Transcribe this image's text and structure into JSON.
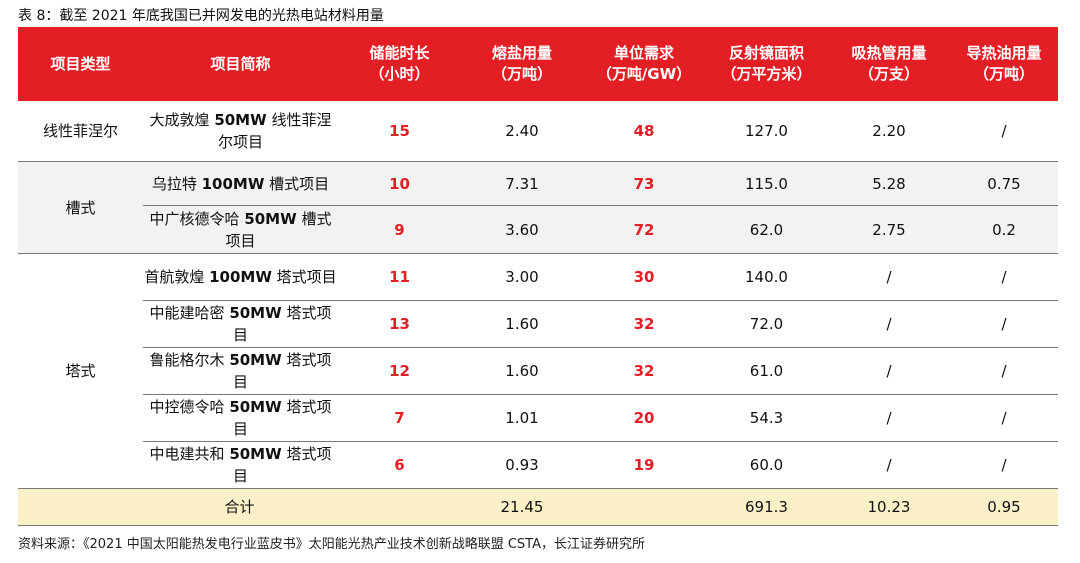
{
  "caption": "表 8：截至 2021 年底我国已并网发电的光热电站材料用量",
  "headers": [
    {
      "l1": "项目类型",
      "l2": ""
    },
    {
      "l1": "项目简称",
      "l2": ""
    },
    {
      "l1": "储能时长",
      "l2": "（小时）"
    },
    {
      "l1": "熔盐用量",
      "l2": "（万吨）"
    },
    {
      "l1": "单位需求",
      "l2": "（万吨/GW）"
    },
    {
      "l1": "反射镜面积",
      "l2": "（万平方米）"
    },
    {
      "l1": "吸热管用量",
      "l2": "（万支）"
    },
    {
      "l1": "导热油用量",
      "l2": "（万吨）"
    }
  ],
  "types": {
    "line": "线性菲涅尔",
    "trough": "槽式",
    "tower": "塔式"
  },
  "rows": [
    {
      "pre": "大成敦煌 ",
      "bold": "50MW",
      "post": " 线性菲涅尔项目",
      "hours": "15",
      "salt": "2.40",
      "unit": "48",
      "mirror": "127.0",
      "tube": "2.20",
      "oil": "/"
    },
    {
      "pre": "乌拉特 ",
      "bold": "100MW",
      "post": " 槽式项目",
      "hours": "10",
      "salt": "7.31",
      "unit": "73",
      "mirror": "115.0",
      "tube": "5.28",
      "oil": "0.75"
    },
    {
      "pre": "中广核德令哈 ",
      "bold": "50MW",
      "post": " 槽式项目",
      "hours": "9",
      "salt": "3.60",
      "unit": "72",
      "mirror": "62.0",
      "tube": "2.75",
      "oil": "0.2"
    },
    {
      "pre": "首航敦煌 ",
      "bold": "100MW",
      "post": " 塔式项目",
      "hours": "11",
      "salt": "3.00",
      "unit": "30",
      "mirror": "140.0",
      "tube": "/",
      "oil": "/"
    },
    {
      "pre": "中能建哈密 ",
      "bold": "50MW",
      "post": " 塔式项目",
      "hours": "13",
      "salt": "1.60",
      "unit": "32",
      "mirror": "72.0",
      "tube": "/",
      "oil": "/"
    },
    {
      "pre": "鲁能格尔木 ",
      "bold": "50MW",
      "post": " 塔式项目",
      "hours": "12",
      "salt": "1.60",
      "unit": "32",
      "mirror": "61.0",
      "tube": "/",
      "oil": "/"
    },
    {
      "pre": "中控德令哈 ",
      "bold": "50MW",
      "post": " 塔式项目",
      "hours": "7",
      "salt": "1.01",
      "unit": "20",
      "mirror": "54.3",
      "tube": "/",
      "oil": "/"
    },
    {
      "pre": "中电建共和 ",
      "bold": "50MW",
      "post": " 塔式项目",
      "hours": "6",
      "salt": "0.93",
      "unit": "19",
      "mirror": "60.0",
      "tube": "/",
      "oil": "/"
    }
  ],
  "total": {
    "label": "合计",
    "salt": "21.45",
    "mirror": "691.3",
    "tube": "10.23",
    "oil": "0.95"
  },
  "footer": "资料来源：《2021 中国太阳能热发电行业蓝皮书》太阳能光热产业技术创新战略联盟 CSTA，长江证券研究所",
  "colors": {
    "header_bg": "#e31e24",
    "highlight": "#e31e24",
    "gray_band": "#f2f2f2",
    "total_bg": "#fbf0c8"
  }
}
